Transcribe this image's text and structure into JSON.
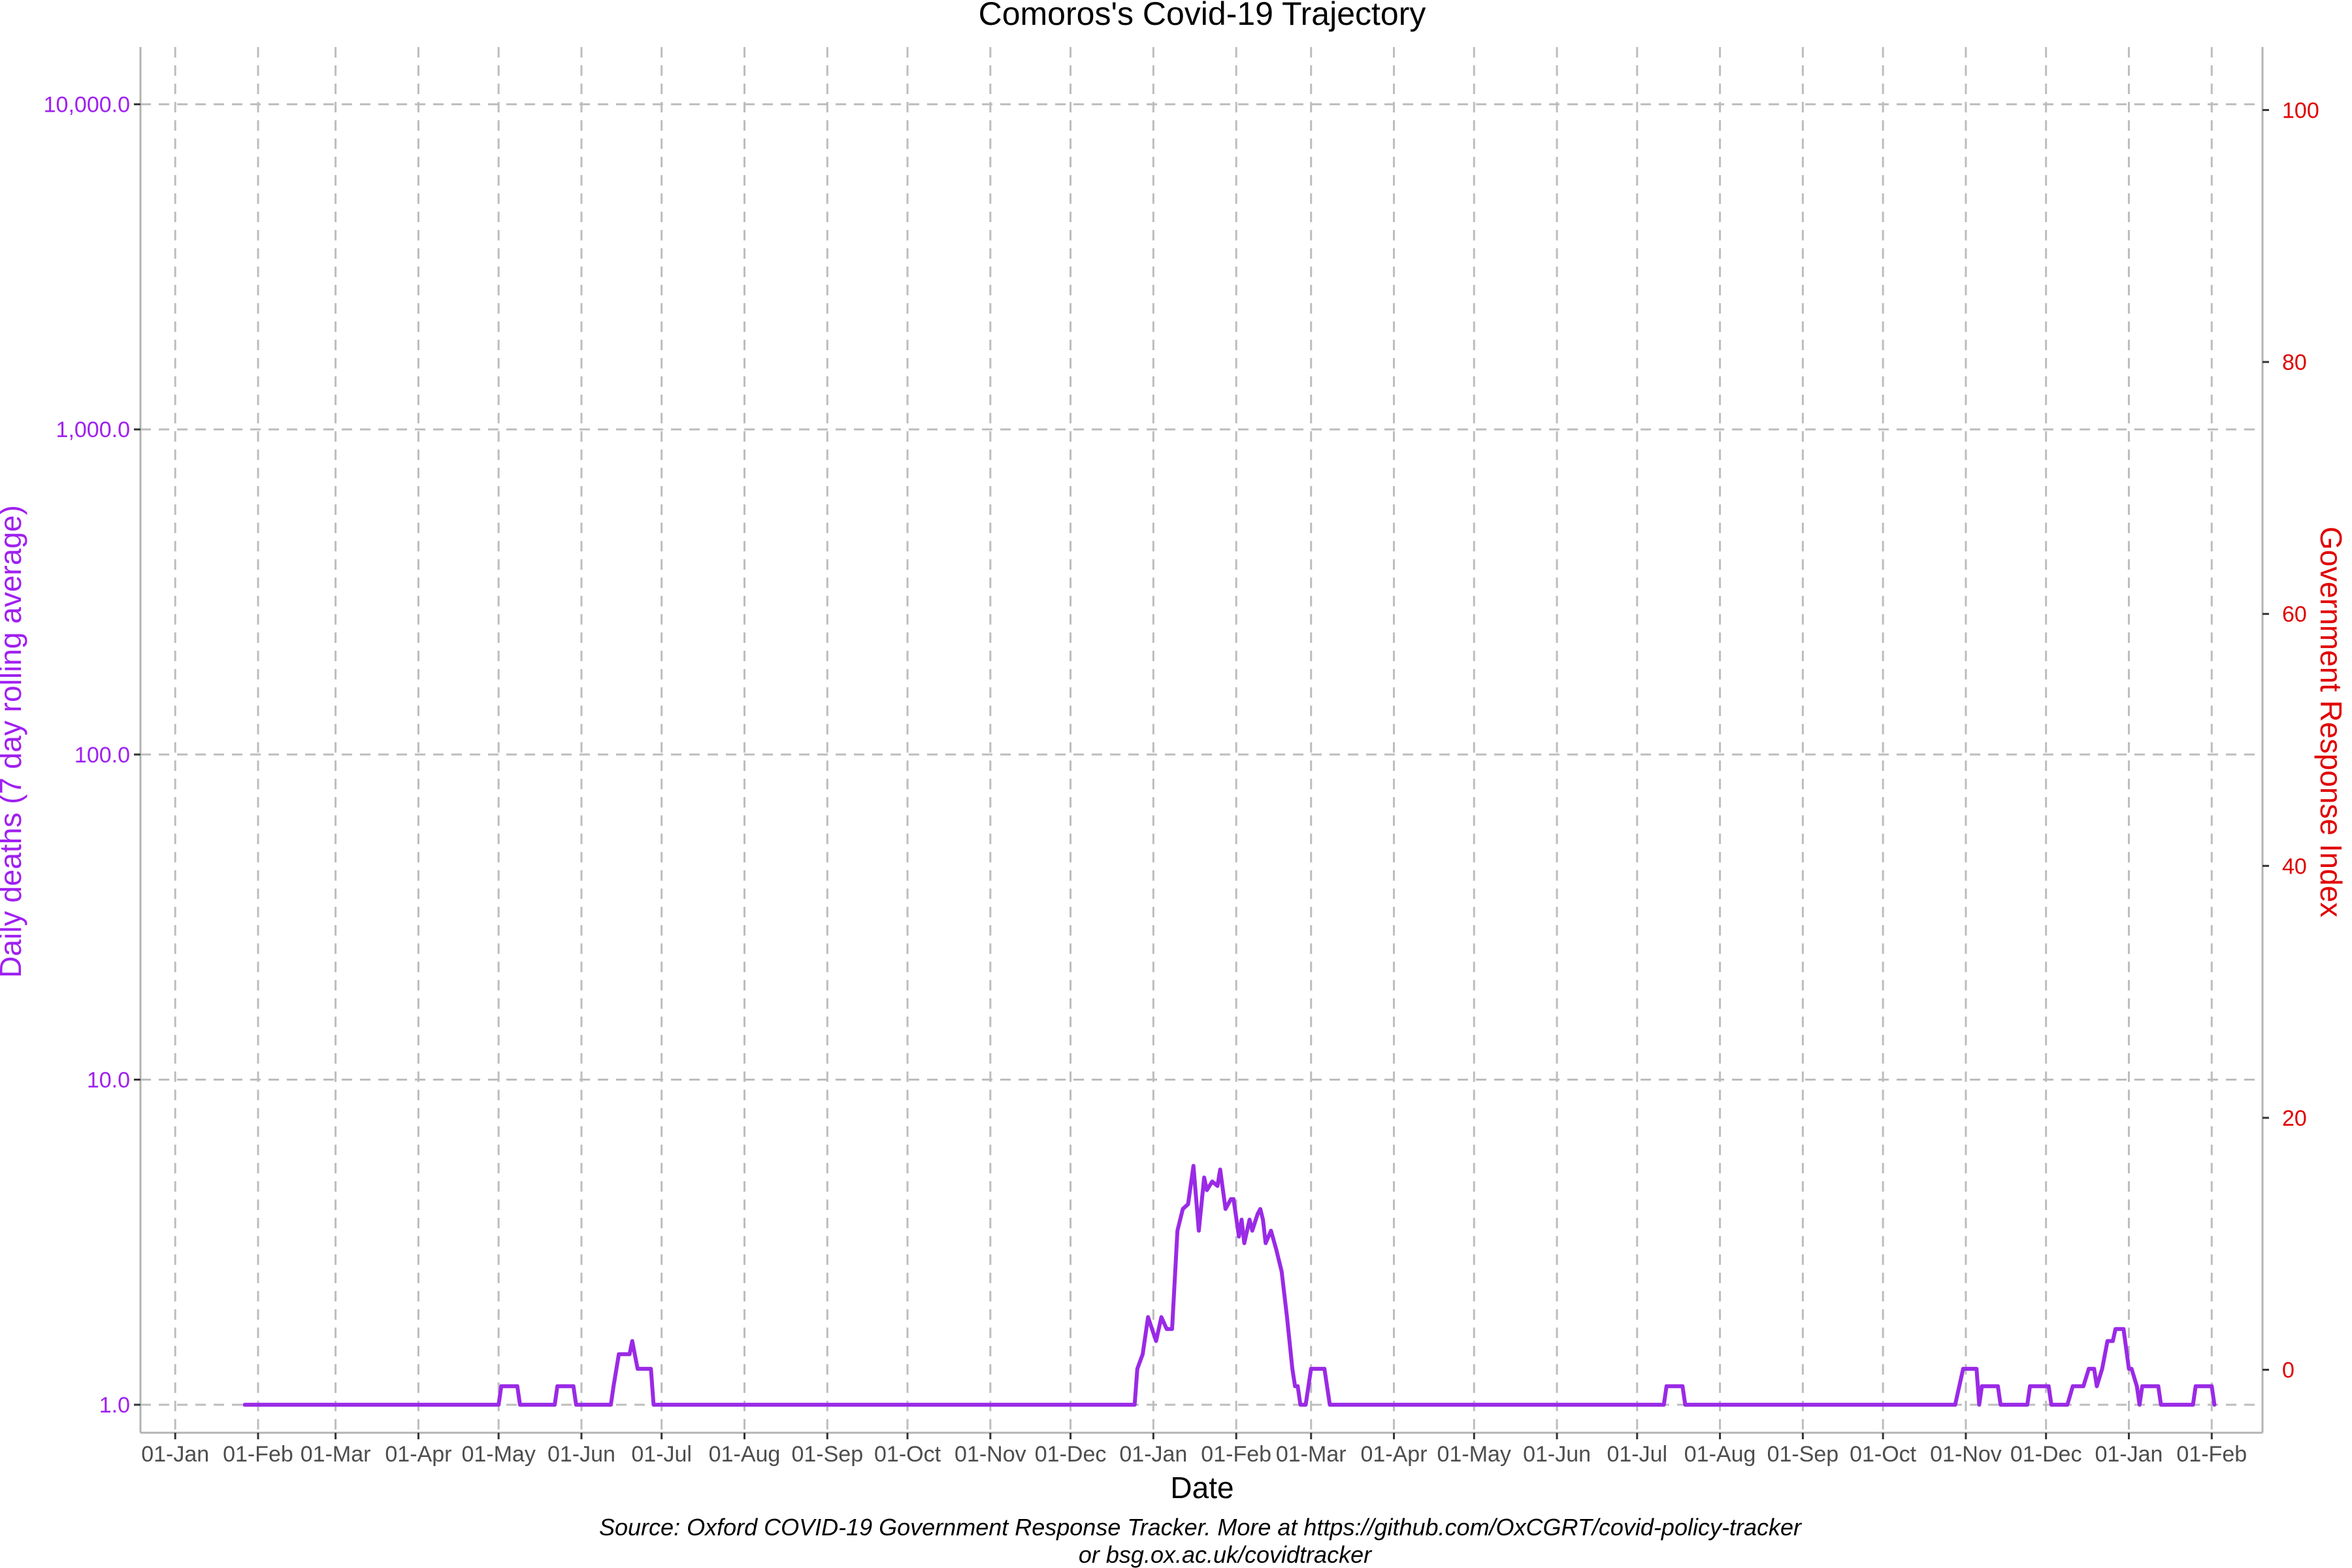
{
  "chart_data": {
    "type": "line",
    "title": "Comoros's Covid-19 Trajectory",
    "xlabel": "Date",
    "ylabel": "Daily deaths (7 day rolling average)",
    "y2label": "Government Response Index",
    "caption_line1": "Source: Oxford COVID-19 Government Response Tracker. More at https://github.com/OxCGRT/covid-policy-tracker",
    "caption_line2": "or bsg.ox.ac.uk/covidtracker",
    "x_range": [
      "2019-12-19",
      "2022-02-20"
    ],
    "x_ticks": [
      {
        "date": "2020-01-01",
        "label": "01-Jan"
      },
      {
        "date": "2020-02-01",
        "label": "01-Feb"
      },
      {
        "date": "2020-03-01",
        "label": "01-Mar"
      },
      {
        "date": "2020-04-01",
        "label": "01-Apr"
      },
      {
        "date": "2020-05-01",
        "label": "01-May"
      },
      {
        "date": "2020-06-01",
        "label": "01-Jun"
      },
      {
        "date": "2020-07-01",
        "label": "01-Jul"
      },
      {
        "date": "2020-08-01",
        "label": "01-Aug"
      },
      {
        "date": "2020-09-01",
        "label": "01-Sep"
      },
      {
        "date": "2020-10-01",
        "label": "01-Oct"
      },
      {
        "date": "2020-11-01",
        "label": "01-Nov"
      },
      {
        "date": "2020-12-01",
        "label": "01-Dec"
      },
      {
        "date": "2021-01-01",
        "label": "01-Jan"
      },
      {
        "date": "2021-02-01",
        "label": "01-Feb"
      },
      {
        "date": "2021-03-01",
        "label": "01-Mar"
      },
      {
        "date": "2021-04-01",
        "label": "01-Apr"
      },
      {
        "date": "2021-05-01",
        "label": "01-May"
      },
      {
        "date": "2021-06-01",
        "label": "01-Jun"
      },
      {
        "date": "2021-07-01",
        "label": "01-Jul"
      },
      {
        "date": "2021-08-01",
        "label": "01-Aug"
      },
      {
        "date": "2021-09-01",
        "label": "01-Sep"
      },
      {
        "date": "2021-10-01",
        "label": "01-Oct"
      },
      {
        "date": "2021-11-01",
        "label": "01-Nov"
      },
      {
        "date": "2021-12-01",
        "label": "01-Dec"
      },
      {
        "date": "2022-01-01",
        "label": "01-Jan"
      },
      {
        "date": "2022-02-01",
        "label": "01-Feb"
      }
    ],
    "y_scale": "log10",
    "y_range": [
      0.82,
      15000
    ],
    "y_ticks": [
      {
        "value": 1,
        "label": "1.0"
      },
      {
        "value": 10,
        "label": "10.0"
      },
      {
        "value": 100,
        "label": "100.0"
      },
      {
        "value": 1000,
        "label": "1,000.0"
      },
      {
        "value": 10000,
        "label": "10,000.0"
      }
    ],
    "y2_range": [
      -5,
      105
    ],
    "y2_ticks": [
      {
        "value": 0,
        "label": "0"
      },
      {
        "value": 20,
        "label": "20"
      },
      {
        "value": 40,
        "label": "40"
      },
      {
        "value": 60,
        "label": "60"
      },
      {
        "value": 80,
        "label": "80"
      },
      {
        "value": 100,
        "label": "100"
      }
    ],
    "grid": true,
    "legend": "none",
    "colors": {
      "deaths": "#9a2ae6",
      "left_axis": "#a020f0",
      "right_axis": "#e00000"
    },
    "series": [
      {
        "axis": "left",
        "color": "#9a2ae6",
        "points": [
          [
            "2020-01-27",
            1.0
          ],
          [
            "2020-05-01",
            1.0
          ],
          [
            "2020-05-02",
            1.14
          ],
          [
            "2020-05-08",
            1.14
          ],
          [
            "2020-05-09",
            1.0
          ],
          [
            "2020-05-22",
            1.0
          ],
          [
            "2020-05-23",
            1.14
          ],
          [
            "2020-05-29",
            1.14
          ],
          [
            "2020-05-30",
            1.0
          ],
          [
            "2020-06-12",
            1.0
          ],
          [
            "2020-06-13",
            1.14
          ],
          [
            "2020-06-15",
            1.43
          ],
          [
            "2020-06-19",
            1.43
          ],
          [
            "2020-06-20",
            1.57
          ],
          [
            "2020-06-22",
            1.29
          ],
          [
            "2020-06-27",
            1.29
          ],
          [
            "2020-06-28",
            1.0
          ],
          [
            "2020-12-25",
            1.0
          ],
          [
            "2020-12-26",
            1.29
          ],
          [
            "2020-12-28",
            1.43
          ],
          [
            "2020-12-30",
            1.86
          ],
          [
            "2021-01-02",
            1.57
          ],
          [
            "2021-01-04",
            1.86
          ],
          [
            "2021-01-06",
            1.71
          ],
          [
            "2021-01-08",
            1.71
          ],
          [
            "2021-01-10",
            3.43
          ],
          [
            "2021-01-12",
            4.0
          ],
          [
            "2021-01-14",
            4.14
          ],
          [
            "2021-01-16",
            5.43
          ],
          [
            "2021-01-18",
            3.43
          ],
          [
            "2021-01-20",
            5.0
          ],
          [
            "2021-01-21",
            4.57
          ],
          [
            "2021-01-23",
            4.86
          ],
          [
            "2021-01-25",
            4.71
          ],
          [
            "2021-01-26",
            5.29
          ],
          [
            "2021-01-28",
            4.0
          ],
          [
            "2021-01-30",
            4.29
          ],
          [
            "2021-01-31",
            4.29
          ],
          [
            "2021-02-02",
            3.29
          ],
          [
            "2021-02-03",
            3.71
          ],
          [
            "2021-02-04",
            3.14
          ],
          [
            "2021-02-06",
            3.71
          ],
          [
            "2021-02-07",
            3.43
          ],
          [
            "2021-02-09",
            3.86
          ],
          [
            "2021-02-10",
            4.0
          ],
          [
            "2021-02-11",
            3.71
          ],
          [
            "2021-02-12",
            3.14
          ],
          [
            "2021-02-14",
            3.43
          ],
          [
            "2021-02-16",
            3.0
          ],
          [
            "2021-02-18",
            2.57
          ],
          [
            "2021-02-20",
            1.86
          ],
          [
            "2021-02-22",
            1.29
          ],
          [
            "2021-02-23",
            1.14
          ],
          [
            "2021-02-24",
            1.14
          ],
          [
            "2021-02-25",
            1.0
          ],
          [
            "2021-02-27",
            1.0
          ],
          [
            "2021-03-01",
            1.29
          ],
          [
            "2021-03-06",
            1.29
          ],
          [
            "2021-03-08",
            1.0
          ],
          [
            "2021-07-11",
            1.0
          ],
          [
            "2021-07-12",
            1.14
          ],
          [
            "2021-07-18",
            1.14
          ],
          [
            "2021-07-19",
            1.0
          ],
          [
            "2021-10-28",
            1.0
          ],
          [
            "2021-10-31",
            1.29
          ],
          [
            "2021-11-05",
            1.29
          ],
          [
            "2021-11-06",
            1.0
          ],
          [
            "2021-11-07",
            1.14
          ],
          [
            "2021-11-13",
            1.14
          ],
          [
            "2021-11-14",
            1.0
          ],
          [
            "2021-11-24",
            1.0
          ],
          [
            "2021-11-25",
            1.14
          ],
          [
            "2021-12-02",
            1.14
          ],
          [
            "2021-12-03",
            1.0
          ],
          [
            "2021-12-09",
            1.0
          ],
          [
            "2021-12-11",
            1.14
          ],
          [
            "2021-12-15",
            1.14
          ],
          [
            "2021-12-17",
            1.29
          ],
          [
            "2021-12-19",
            1.29
          ],
          [
            "2021-12-20",
            1.14
          ],
          [
            "2021-12-22",
            1.29
          ],
          [
            "2021-12-24",
            1.57
          ],
          [
            "2021-12-26",
            1.57
          ],
          [
            "2021-12-27",
            1.71
          ],
          [
            "2021-12-30",
            1.71
          ],
          [
            "2022-01-01",
            1.29
          ],
          [
            "2022-01-02",
            1.29
          ],
          [
            "2022-01-04",
            1.14
          ],
          [
            "2022-01-05",
            1.0
          ],
          [
            "2022-01-06",
            1.14
          ],
          [
            "2022-01-12",
            1.14
          ],
          [
            "2022-01-13",
            1.0
          ],
          [
            "2022-01-25",
            1.0
          ],
          [
            "2022-01-26",
            1.14
          ],
          [
            "2022-02-01",
            1.14
          ],
          [
            "2022-02-02",
            1.0
          ]
        ]
      }
    ]
  }
}
